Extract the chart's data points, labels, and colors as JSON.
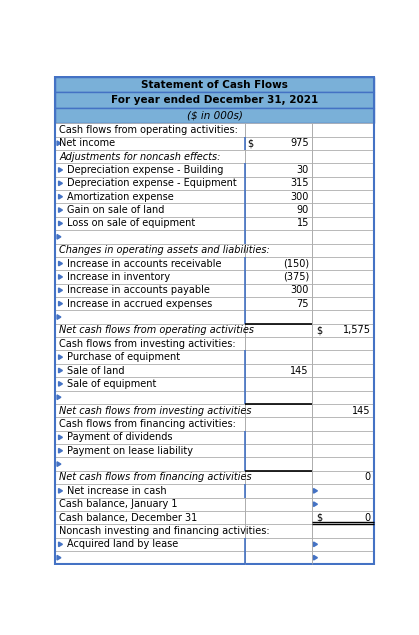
{
  "title1": "Statement of Cash Flows",
  "title2": "For year ended December 31, 2021",
  "title3": "($ in 000s)",
  "header_bg": "#7ab0d8",
  "border_color": "#4472c4",
  "rows": [
    {
      "label": "Cash flows from operating activities:",
      "indent": 0,
      "col1": "",
      "col2": "",
      "italic": false,
      "has_arrow": false
    },
    {
      "label": "Net income",
      "indent": 0,
      "col1_dollar": "$",
      "col1": "975",
      "col2": "",
      "italic": false,
      "has_arrow": true
    },
    {
      "label": "Adjustments for noncash effects:",
      "indent": 0,
      "col1": "",
      "col2": "",
      "italic": true,
      "has_arrow": false
    },
    {
      "label": "Depreciation expense - Building",
      "indent": 1,
      "col1": "30",
      "col2": "",
      "italic": false,
      "has_arrow": true
    },
    {
      "label": "Depreciation expense - Equipment",
      "indent": 1,
      "col1": "315",
      "col2": "",
      "italic": false,
      "has_arrow": true
    },
    {
      "label": "Amortization expense",
      "indent": 1,
      "col1": "300",
      "col2": "",
      "italic": false,
      "has_arrow": true
    },
    {
      "label": "Gain on sale of land",
      "indent": 1,
      "col1": "90",
      "col2": "",
      "italic": false,
      "has_arrow": true
    },
    {
      "label": "Loss on sale of equipment",
      "indent": 1,
      "col1": "15",
      "col2": "",
      "italic": false,
      "has_arrow": true
    },
    {
      "label": "",
      "indent": 0,
      "col1": "",
      "col2": "",
      "italic": false,
      "has_arrow": true,
      "empty": true
    },
    {
      "label": "Changes in operating assets and liabilities:",
      "indent": 0,
      "col1": "",
      "col2": "",
      "italic": true,
      "has_arrow": false
    },
    {
      "label": "Increase in accounts receivable",
      "indent": 1,
      "col1": "(150)",
      "col2": "",
      "italic": false,
      "has_arrow": true
    },
    {
      "label": "Increase in inventory",
      "indent": 1,
      "col1": "(375)",
      "col2": "",
      "italic": false,
      "has_arrow": true
    },
    {
      "label": "Increase in accounts payable",
      "indent": 1,
      "col1": "300",
      "col2": "",
      "italic": false,
      "has_arrow": true
    },
    {
      "label": "Increase in accrued expenses",
      "indent": 1,
      "col1": "75",
      "col2": "",
      "italic": false,
      "has_arrow": true
    },
    {
      "label": "",
      "indent": 0,
      "col1": "",
      "col2": "",
      "italic": false,
      "has_arrow": true,
      "empty": true,
      "black_bot_col1": true
    },
    {
      "label": "Net cash flows from operating activities",
      "indent": 0,
      "col1": "",
      "col2_dollar": "$",
      "col2": "1,575",
      "italic": true,
      "has_arrow": false
    },
    {
      "label": "Cash flows from investing activities:",
      "indent": 0,
      "col1": "",
      "col2": "",
      "italic": false,
      "has_arrow": false
    },
    {
      "label": "Purchase of equipment",
      "indent": 1,
      "col1": "",
      "col2": "",
      "italic": false,
      "has_arrow": true
    },
    {
      "label": "Sale of land",
      "indent": 1,
      "col1": "145",
      "col2": "",
      "italic": false,
      "has_arrow": true
    },
    {
      "label": "Sale of equipment",
      "indent": 1,
      "col1": "",
      "col2": "",
      "italic": false,
      "has_arrow": true
    },
    {
      "label": "",
      "indent": 0,
      "col1": "",
      "col2": "",
      "italic": false,
      "has_arrow": true,
      "empty": true,
      "black_bot_col1": true
    },
    {
      "label": "Net cash flows from investing activities",
      "indent": 0,
      "col1": "",
      "col2": "145",
      "italic": true,
      "has_arrow": false
    },
    {
      "label": "Cash flows from financing activities:",
      "indent": 0,
      "col1": "",
      "col2": "",
      "italic": false,
      "has_arrow": false
    },
    {
      "label": "Payment of dividends",
      "indent": 1,
      "col1": "",
      "col2": "",
      "italic": false,
      "has_arrow": true
    },
    {
      "label": "Payment on lease liability",
      "indent": 1,
      "col1": "",
      "col2": "",
      "italic": false,
      "has_arrow": true
    },
    {
      "label": "",
      "indent": 0,
      "col1": "",
      "col2": "",
      "italic": false,
      "has_arrow": true,
      "empty": true,
      "black_bot_col1": true
    },
    {
      "label": "Net cash flows from financing activities",
      "indent": 0,
      "col1": "",
      "col2": "0",
      "italic": true,
      "has_arrow": false
    },
    {
      "label": "Net increase in cash",
      "indent": 1,
      "col1": "",
      "col2": "",
      "italic": false,
      "has_arrow": true,
      "col2_blue_arrow": true
    },
    {
      "label": "Cash balance, January 1",
      "indent": 0,
      "col1": "",
      "col2": "",
      "italic": false,
      "has_arrow": false,
      "col2_blue_arrow": true
    },
    {
      "label": "Cash balance, December 31",
      "indent": 0,
      "col1": "",
      "col2_dollar": "$",
      "col2": "0",
      "italic": false,
      "has_arrow": false,
      "double_underline_col2": true
    },
    {
      "label": "Noncash investing and financing activities:",
      "indent": 0,
      "col1": "",
      "col2": "",
      "italic": false,
      "has_arrow": false
    },
    {
      "label": "Acquired land by lease",
      "indent": 1,
      "col1": "",
      "col2": "",
      "italic": false,
      "has_arrow": true,
      "col2_blue_arrow": true
    },
    {
      "label": "",
      "indent": 0,
      "col1": "",
      "col2": "",
      "italic": false,
      "has_arrow": true,
      "empty": true,
      "col2_blue_arrow": true
    }
  ]
}
